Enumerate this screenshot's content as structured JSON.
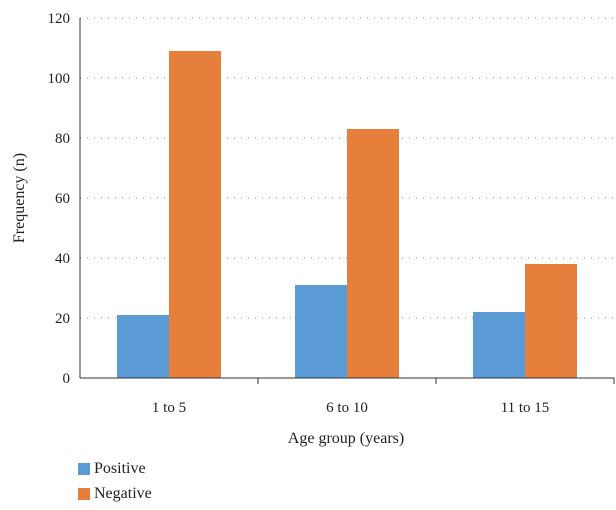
{
  "chart_data": {
    "type": "bar",
    "categories": [
      "1 to 5",
      "6 to 10",
      "11 to 15"
    ],
    "series": [
      {
        "name": "Positive",
        "values": [
          21,
          31,
          22
        ],
        "color": "#5b9bd5"
      },
      {
        "name": "Negative",
        "values": [
          109,
          83,
          38
        ],
        "color": "#e67e3c"
      }
    ],
    "title": "",
    "xlabel": "Age group (years)",
    "ylabel": "Frequency (n)",
    "ylim": [
      0,
      120
    ],
    "yticks": [
      "0",
      "20",
      "40",
      "60",
      "80",
      "100",
      "120"
    ],
    "grid": true,
    "legend_position": "bottom-left"
  }
}
